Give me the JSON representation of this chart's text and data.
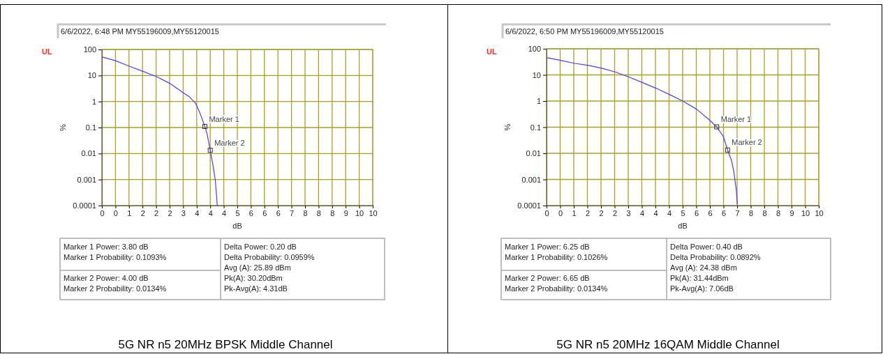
{
  "chart_data": [
    {
      "type": "line",
      "title": "5G NR n5 20MHz BPSK Middle Channel",
      "xlabel": "dB",
      "ylabel": "%",
      "log": "y",
      "grid": true,
      "line_style": "solid",
      "xlim": [
        0,
        10
      ],
      "xticks": [
        {
          "value": 0,
          "label": "0"
        },
        {
          "value": 0.5,
          "label": "0"
        },
        {
          "value": 1,
          "label": "1"
        },
        {
          "value": 1.5,
          "label": "2"
        },
        {
          "value": 2,
          "label": "2"
        },
        {
          "value": 2.5,
          "label": "2"
        },
        {
          "value": 3,
          "label": "3"
        },
        {
          "value": 3.5,
          "label": "4"
        },
        {
          "value": 4,
          "label": "4"
        },
        {
          "value": 4.5,
          "label": "4"
        },
        {
          "value": 5,
          "label": "5"
        },
        {
          "value": 5.5,
          "label": "6"
        },
        {
          "value": 6,
          "label": "6"
        },
        {
          "value": 6.5,
          "label": "6"
        },
        {
          "value": 7,
          "label": "7"
        },
        {
          "value": 7.5,
          "label": "8"
        },
        {
          "value": 8,
          "label": "8"
        },
        {
          "value": 8.5,
          "label": "8"
        },
        {
          "value": 9,
          "label": "9"
        },
        {
          "value": 9.5,
          "label": "10"
        },
        {
          "value": 10,
          "label": "10"
        }
      ],
      "ylim": [
        0.0001,
        100
      ],
      "yticks": [
        0.0001,
        0.001,
        0.01,
        0.1,
        1,
        10,
        100
      ],
      "annotations": [
        "6/6/2022, 6:48 PM  MY55196009,MY55120015",
        "UL",
        "Marker 1 Power: 3.80 dB\nMarker 1 Probability: 0.1093%",
        "Marker 2 Power: 4.00 dB\nMarker 2 Probability: 0.0134%",
        "Delta Power: 0.20 dB\nDelta Probability: 0.0959%\nAvg (A): 25.89 dBm\nPk(A): 30.20dBm\nPk-Avg(A): 4.31dB"
      ],
      "series": [
        {
          "color": "#4a3cff",
          "x": [
            0,
            0.52,
            1.01,
            1.53,
            2.02,
            2.52,
            3.0,
            3.24,
            3.46,
            3.63,
            3.8,
            3.89,
            4.0,
            4.1,
            4.19,
            4.25,
            4.26
          ],
          "values": [
            52,
            36.5,
            22.7,
            14.2,
            9.0,
            4.9,
            2.2,
            1.48,
            0.85,
            0.34,
            0.1093,
            0.053,
            0.0134,
            0.0036,
            0.00087,
            0.000135,
            0.0001
          ]
        },
        {
          "type": "scatter",
          "name": "Marker 1",
          "color": "#333333",
          "marker": "square",
          "x": [
            3.8
          ],
          "values": [
            0.1093
          ]
        },
        {
          "type": "scatter",
          "name": "Marker 2",
          "color": "#333333",
          "marker": "square",
          "x": [
            4.0
          ],
          "values": [
            0.0134
          ]
        }
      ]
    },
    {
      "type": "line",
      "title": "5G NR n5 20MHz 16QAM Middle Channel",
      "xlabel": "dB",
      "ylabel": "%",
      "log": "y",
      "grid": true,
      "line_style": "solid",
      "xlim": [
        0,
        10
      ],
      "xticks": [
        {
          "value": 0,
          "label": "0"
        },
        {
          "value": 0.5,
          "label": "0"
        },
        {
          "value": 1,
          "label": "1"
        },
        {
          "value": 1.5,
          "label": "2"
        },
        {
          "value": 2,
          "label": "2"
        },
        {
          "value": 2.5,
          "label": "2"
        },
        {
          "value": 3,
          "label": "3"
        },
        {
          "value": 3.5,
          "label": "4"
        },
        {
          "value": 4,
          "label": "4"
        },
        {
          "value": 4.5,
          "label": "4"
        },
        {
          "value": 5,
          "label": "5"
        },
        {
          "value": 5.5,
          "label": "6"
        },
        {
          "value": 6,
          "label": "6"
        },
        {
          "value": 6.5,
          "label": "6"
        },
        {
          "value": 7,
          "label": "7"
        },
        {
          "value": 7.5,
          "label": "8"
        },
        {
          "value": 8,
          "label": "8"
        },
        {
          "value": 8.5,
          "label": "8"
        },
        {
          "value": 9,
          "label": "9"
        },
        {
          "value": 9.5,
          "label": "10"
        },
        {
          "value": 10,
          "label": "10"
        }
      ],
      "ylim": [
        0.0001,
        100
      ],
      "yticks": [
        0.0001,
        0.001,
        0.01,
        0.1,
        1,
        10,
        100
      ],
      "annotations": [
        "6/6/2022, 6:50 PM  MY55196009,MY55120015",
        "UL",
        "Marker 1 Power: 6.25 dB\nMarker 1 Probability: 0.1026%",
        "Marker 2 Power: 6.65 dB\nMarker 2 Probability: 0.0134%",
        "Delta Power: 0.40 dB\nDelta Probability: 0.0892%\nAvg (A): 24.38 dBm\nPk(A): 31.44dBm\nPk-Avg(A): 7.06dB"
      ],
      "series": [
        {
          "color": "#4a3cff",
          "x": [
            0,
            0.51,
            1.01,
            1.54,
            2.03,
            2.52,
            2.99,
            3.5,
            4.02,
            4.53,
            5.0,
            5.51,
            5.98,
            6.25,
            6.5,
            6.65,
            6.79,
            6.88,
            6.97,
            7.01
          ],
          "values": [
            46,
            36,
            28,
            23,
            18,
            13,
            8.6,
            5.2,
            3.1,
            1.75,
            1.0,
            0.49,
            0.19,
            0.1026,
            0.043,
            0.0134,
            0.0055,
            0.002,
            0.00039,
            0.00011
          ]
        },
        {
          "type": "scatter",
          "name": "Marker 1",
          "color": "#333333",
          "marker": "square",
          "x": [
            6.25
          ],
          "values": [
            0.1026
          ]
        },
        {
          "type": "scatter",
          "name": "Marker 2",
          "color": "#333333",
          "marker": "square",
          "x": [
            6.65
          ],
          "values": [
            0.0134
          ]
        }
      ]
    }
  ]
}
